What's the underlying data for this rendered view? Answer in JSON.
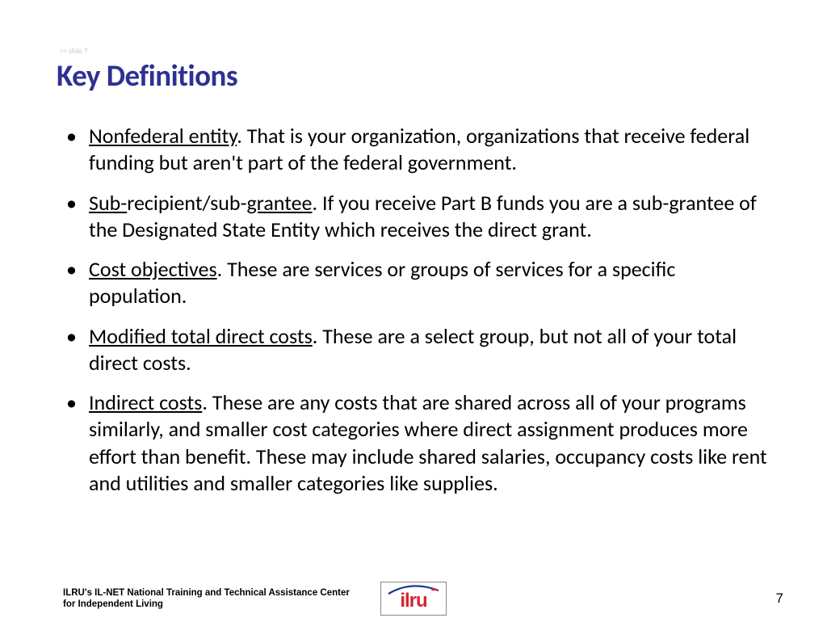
{
  "slide_marker": ">> slide 7",
  "title": "Key Definitions",
  "bullets": [
    {
      "term_parts": [
        {
          "t": "Nonfederal entity",
          "u": true
        }
      ],
      "rest": ". That is your organization, organizations that receive federal funding but aren't part of the federal government."
    },
    {
      "term_parts": [
        {
          "t": "Sub-",
          "u": true
        },
        {
          "t": "recipient/sub-",
          "u": false
        },
        {
          "t": "grantee",
          "u": true
        }
      ],
      "rest": ". If you receive Part B funds you are a sub-grantee of the Designated State Entity which receives the direct grant."
    },
    {
      "term_parts": [
        {
          "t": "Cost objectives",
          "u": true
        }
      ],
      "rest": ". These are services or groups of services for a specific population."
    },
    {
      "term_parts": [
        {
          "t": "Modified total direct costs",
          "u": true
        }
      ],
      "rest": ".  These are a select group, but not all of your total direct costs."
    },
    {
      "term_parts": [
        {
          "t": "Indirect costs",
          "u": true
        }
      ],
      "rest": ".  These are any costs that are shared across all of your programs similarly, and smaller cost categories where direct assignment produces more effort than benefit. These may include shared salaries, occupancy costs like rent and utilities and smaller categories like supplies."
    }
  ],
  "footer_text": "ILRU's IL-NET National Training and Technical Assistance Center for Independent Living",
  "logo_text": "ilru",
  "page_number": "7",
  "colors": {
    "title": "#2e3192",
    "body": "#000000",
    "logo_red": "#d22630",
    "logo_blue": "#1b3a8a",
    "background": "#ffffff"
  },
  "typography": {
    "title_size": 37,
    "body_size": 26,
    "footer_size": 11.5,
    "pagenum_size": 17
  }
}
